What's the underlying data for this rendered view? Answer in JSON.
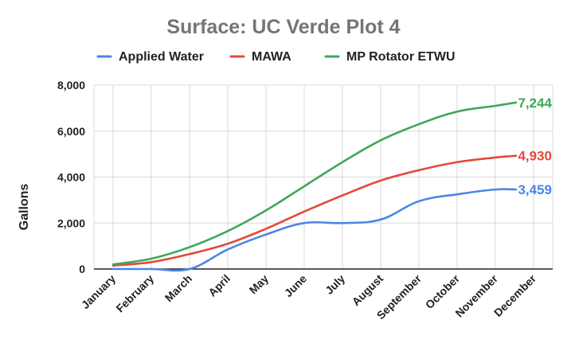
{
  "chart_data": {
    "type": "line",
    "title": "Surface: UC Verde Plot 4",
    "xlabel": "",
    "ylabel": "Gallons",
    "ylim": [
      0,
      8000
    ],
    "yticks": [
      0,
      2000,
      4000,
      6000,
      8000
    ],
    "ytick_labels": [
      "0",
      "2,000",
      "4,000",
      "6,000",
      "8,000"
    ],
    "categories": [
      "January",
      "February",
      "March",
      "April",
      "May",
      "June",
      "July",
      "August",
      "September",
      "October",
      "November",
      "December"
    ],
    "grid": true,
    "legend_position": "top",
    "series": [
      {
        "name": "Applied Water",
        "color": "#4a86e8",
        "values": [
          0,
          0,
          0,
          850,
          1500,
          2000,
          2000,
          2150,
          2950,
          3250,
          3459,
          3459
        ],
        "end_label": "3,459"
      },
      {
        "name": "MAWA",
        "color": "#e24a3b",
        "values": [
          150,
          300,
          650,
          1100,
          1750,
          2500,
          3200,
          3850,
          4300,
          4650,
          4850,
          4930
        ],
        "end_label": "4,930"
      },
      {
        "name": "MP Rotator ETWU",
        "color": "#3ea85a",
        "values": [
          200,
          450,
          950,
          1650,
          2550,
          3600,
          4650,
          5600,
          6300,
          6850,
          7100,
          7244
        ],
        "end_label": "7,244"
      }
    ]
  }
}
